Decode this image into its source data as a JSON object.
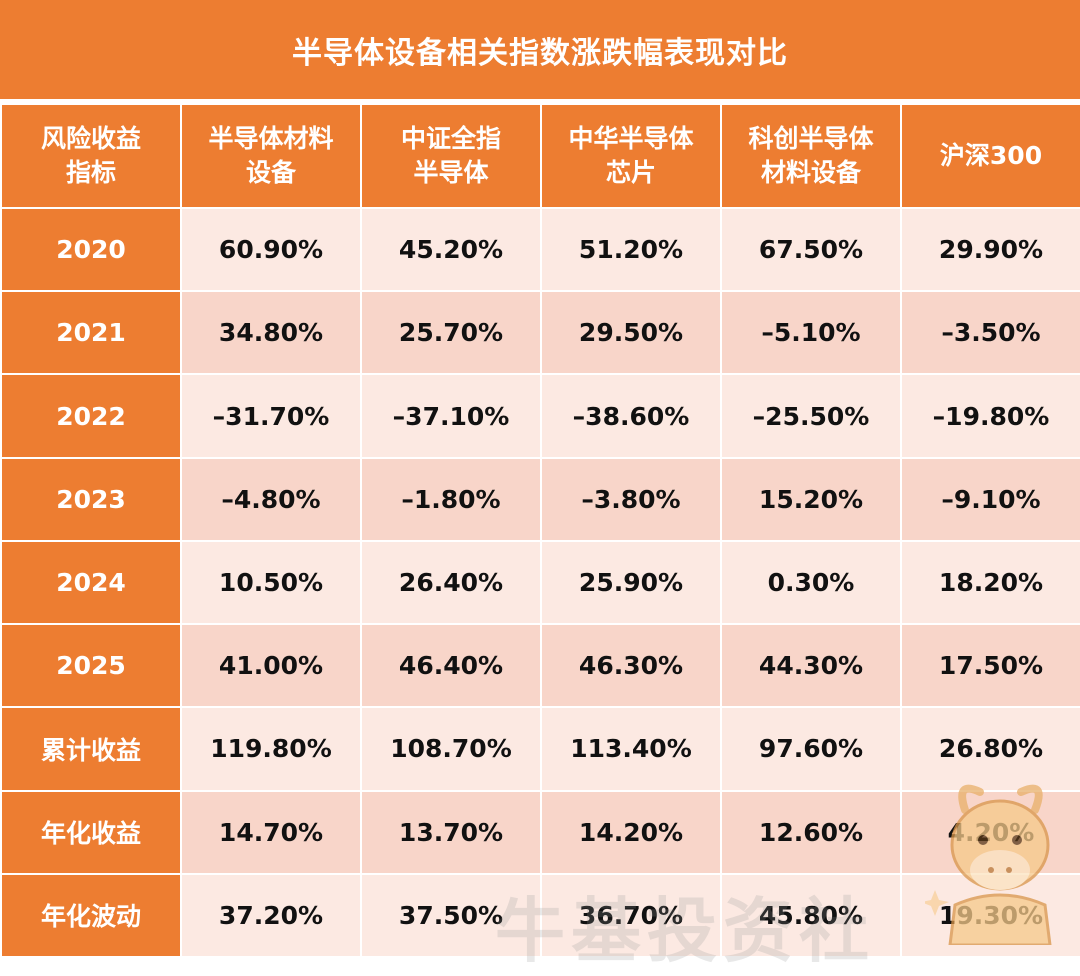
{
  "title": "半导体设备相关指数涨跌幅表现对比",
  "watermark_text": "牛基投资社",
  "colors": {
    "header_bg": "#ED7D31",
    "row_light": "#FCE9E2",
    "row_dark": "#F8D5C9",
    "header_text": "#FFFFFF",
    "cell_text": "#111111"
  },
  "chart_data": {
    "type": "table",
    "title": "半导体设备相关指数涨跌幅表现对比",
    "corner_header": [
      "风险收益",
      "指标"
    ],
    "columns": [
      {
        "lines": [
          "半导体材料",
          "设备"
        ]
      },
      {
        "lines": [
          "中证全指",
          "半导体"
        ]
      },
      {
        "lines": [
          "中华半导体",
          "芯片"
        ]
      },
      {
        "lines": [
          "科创半导体",
          "材料设备"
        ]
      },
      {
        "lines": [
          "沪深300"
        ]
      }
    ],
    "rows": [
      {
        "label": "2020",
        "values": [
          "60.90%",
          "45.20%",
          "51.20%",
          "67.50%",
          "29.90%"
        ]
      },
      {
        "label": "2021",
        "values": [
          "34.80%",
          "25.70%",
          "29.50%",
          "–5.10%",
          "–3.50%"
        ]
      },
      {
        "label": "2022",
        "values": [
          "–31.70%",
          "–37.10%",
          "–38.60%",
          "–25.50%",
          "–19.80%"
        ]
      },
      {
        "label": "2023",
        "values": [
          "–4.80%",
          "–1.80%",
          "–3.80%",
          "15.20%",
          "–9.10%"
        ]
      },
      {
        "label": "2024",
        "values": [
          "10.50%",
          "26.40%",
          "25.90%",
          "0.30%",
          "18.20%"
        ]
      },
      {
        "label": "2025",
        "values": [
          "41.00%",
          "46.40%",
          "46.30%",
          "44.30%",
          "17.50%"
        ]
      },
      {
        "label": "累计收益",
        "values": [
          "119.80%",
          "108.70%",
          "113.40%",
          "97.60%",
          "26.80%"
        ]
      },
      {
        "label": "年化收益",
        "values": [
          "14.70%",
          "13.70%",
          "14.20%",
          "12.60%",
          "4.20%"
        ]
      },
      {
        "label": "年化波动",
        "values": [
          "37.20%",
          "37.50%",
          "36.70%",
          "45.80%",
          "19.30%"
        ]
      }
    ]
  },
  "decor": {
    "mascot_icon": "bull-mascot-icon"
  }
}
